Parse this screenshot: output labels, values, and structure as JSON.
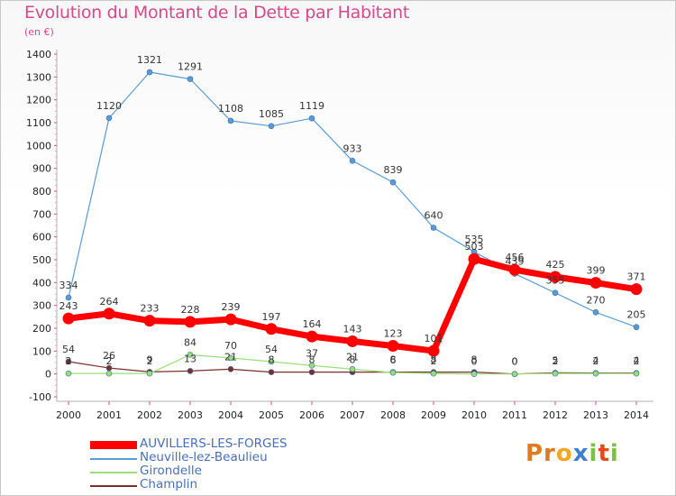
{
  "chart_data": {
    "type": "line",
    "title": "Evolution du Montant de la Dette par Habitant",
    "subtitle": "(en €)",
    "x": [
      2000,
      2001,
      2002,
      2003,
      2004,
      2005,
      2006,
      2007,
      2008,
      2009,
      2010,
      2011,
      2012,
      2013,
      2014
    ],
    "x_tick_labels": [
      "2000",
      "2001",
      "2002",
      "2003",
      "2004",
      "2005",
      "2006",
      "2007",
      "2008",
      "2009",
      "2010",
      "2011",
      "2012",
      "2013",
      "2014"
    ],
    "ylim": [
      -100,
      1400
    ],
    "y_ticks": [
      -100,
      0,
      100,
      200,
      300,
      400,
      500,
      600,
      700,
      800,
      900,
      1000,
      1100,
      1200,
      1300,
      1400
    ],
    "y_tick_labels": [
      "-100",
      "0",
      "100",
      "200",
      "300",
      "400",
      "500",
      "600",
      "700",
      "800",
      "900",
      "1000",
      "1100",
      "1200",
      "1300",
      "1400"
    ],
    "grid": false,
    "legend_position": "bottom-left",
    "series": [
      {
        "name": "AUVILLERS-LES-FORGES",
        "color": "#ff0000",
        "emphasis": true,
        "values": [
          243,
          264,
          233,
          228,
          239,
          197,
          164,
          143,
          123,
          101,
          503,
          456,
          425,
          399,
          371
        ],
        "labels": [
          "243",
          "264",
          "233",
          "228",
          "239",
          "197",
          "164",
          "143",
          "123",
          "101",
          "503",
          "456",
          "425",
          "399",
          "371"
        ]
      },
      {
        "name": "Neuville-lez-Beaulieu",
        "color": "#5b9bd5",
        "values": [
          334,
          1120,
          1321,
          1291,
          1108,
          1085,
          1119,
          933,
          839,
          640,
          535,
          439,
          355,
          270,
          205
        ],
        "labels": [
          "334",
          "1120",
          "1321",
          "1291",
          "1108",
          "1085",
          "1119",
          "933",
          "839",
          "640",
          "535",
          "439",
          "355",
          "270",
          "205"
        ]
      },
      {
        "name": "Girondelle",
        "color": "#99dd77",
        "values": [
          2,
          2,
          2,
          84,
          70,
          54,
          37,
          21,
          6,
          2,
          0,
          0,
          2,
          2,
          2
        ],
        "labels": [
          "2",
          "2",
          "2",
          "84",
          "70",
          "54",
          "37",
          "21",
          "6",
          "2",
          "0",
          "0",
          "2",
          "2",
          "2"
        ]
      },
      {
        "name": "Champlin",
        "color": "#7a2e2e",
        "values": [
          54,
          26,
          9,
          13,
          21,
          8,
          8,
          8,
          8,
          8,
          8,
          0,
          5,
          4,
          4
        ],
        "labels": [
          "54",
          "26",
          "9",
          "13",
          "21",
          "8",
          "8",
          "8",
          "8",
          "8",
          "8",
          "0",
          "5",
          "4",
          "4"
        ]
      }
    ]
  },
  "logo": {
    "text_parts": [
      "Pr",
      "o",
      "x",
      "i",
      "t",
      "i"
    ],
    "colors": [
      "#e07a1f",
      "#f5a623",
      "#3f7fd0",
      "#7cc242",
      "#e04a1f",
      "#7cc242"
    ]
  }
}
